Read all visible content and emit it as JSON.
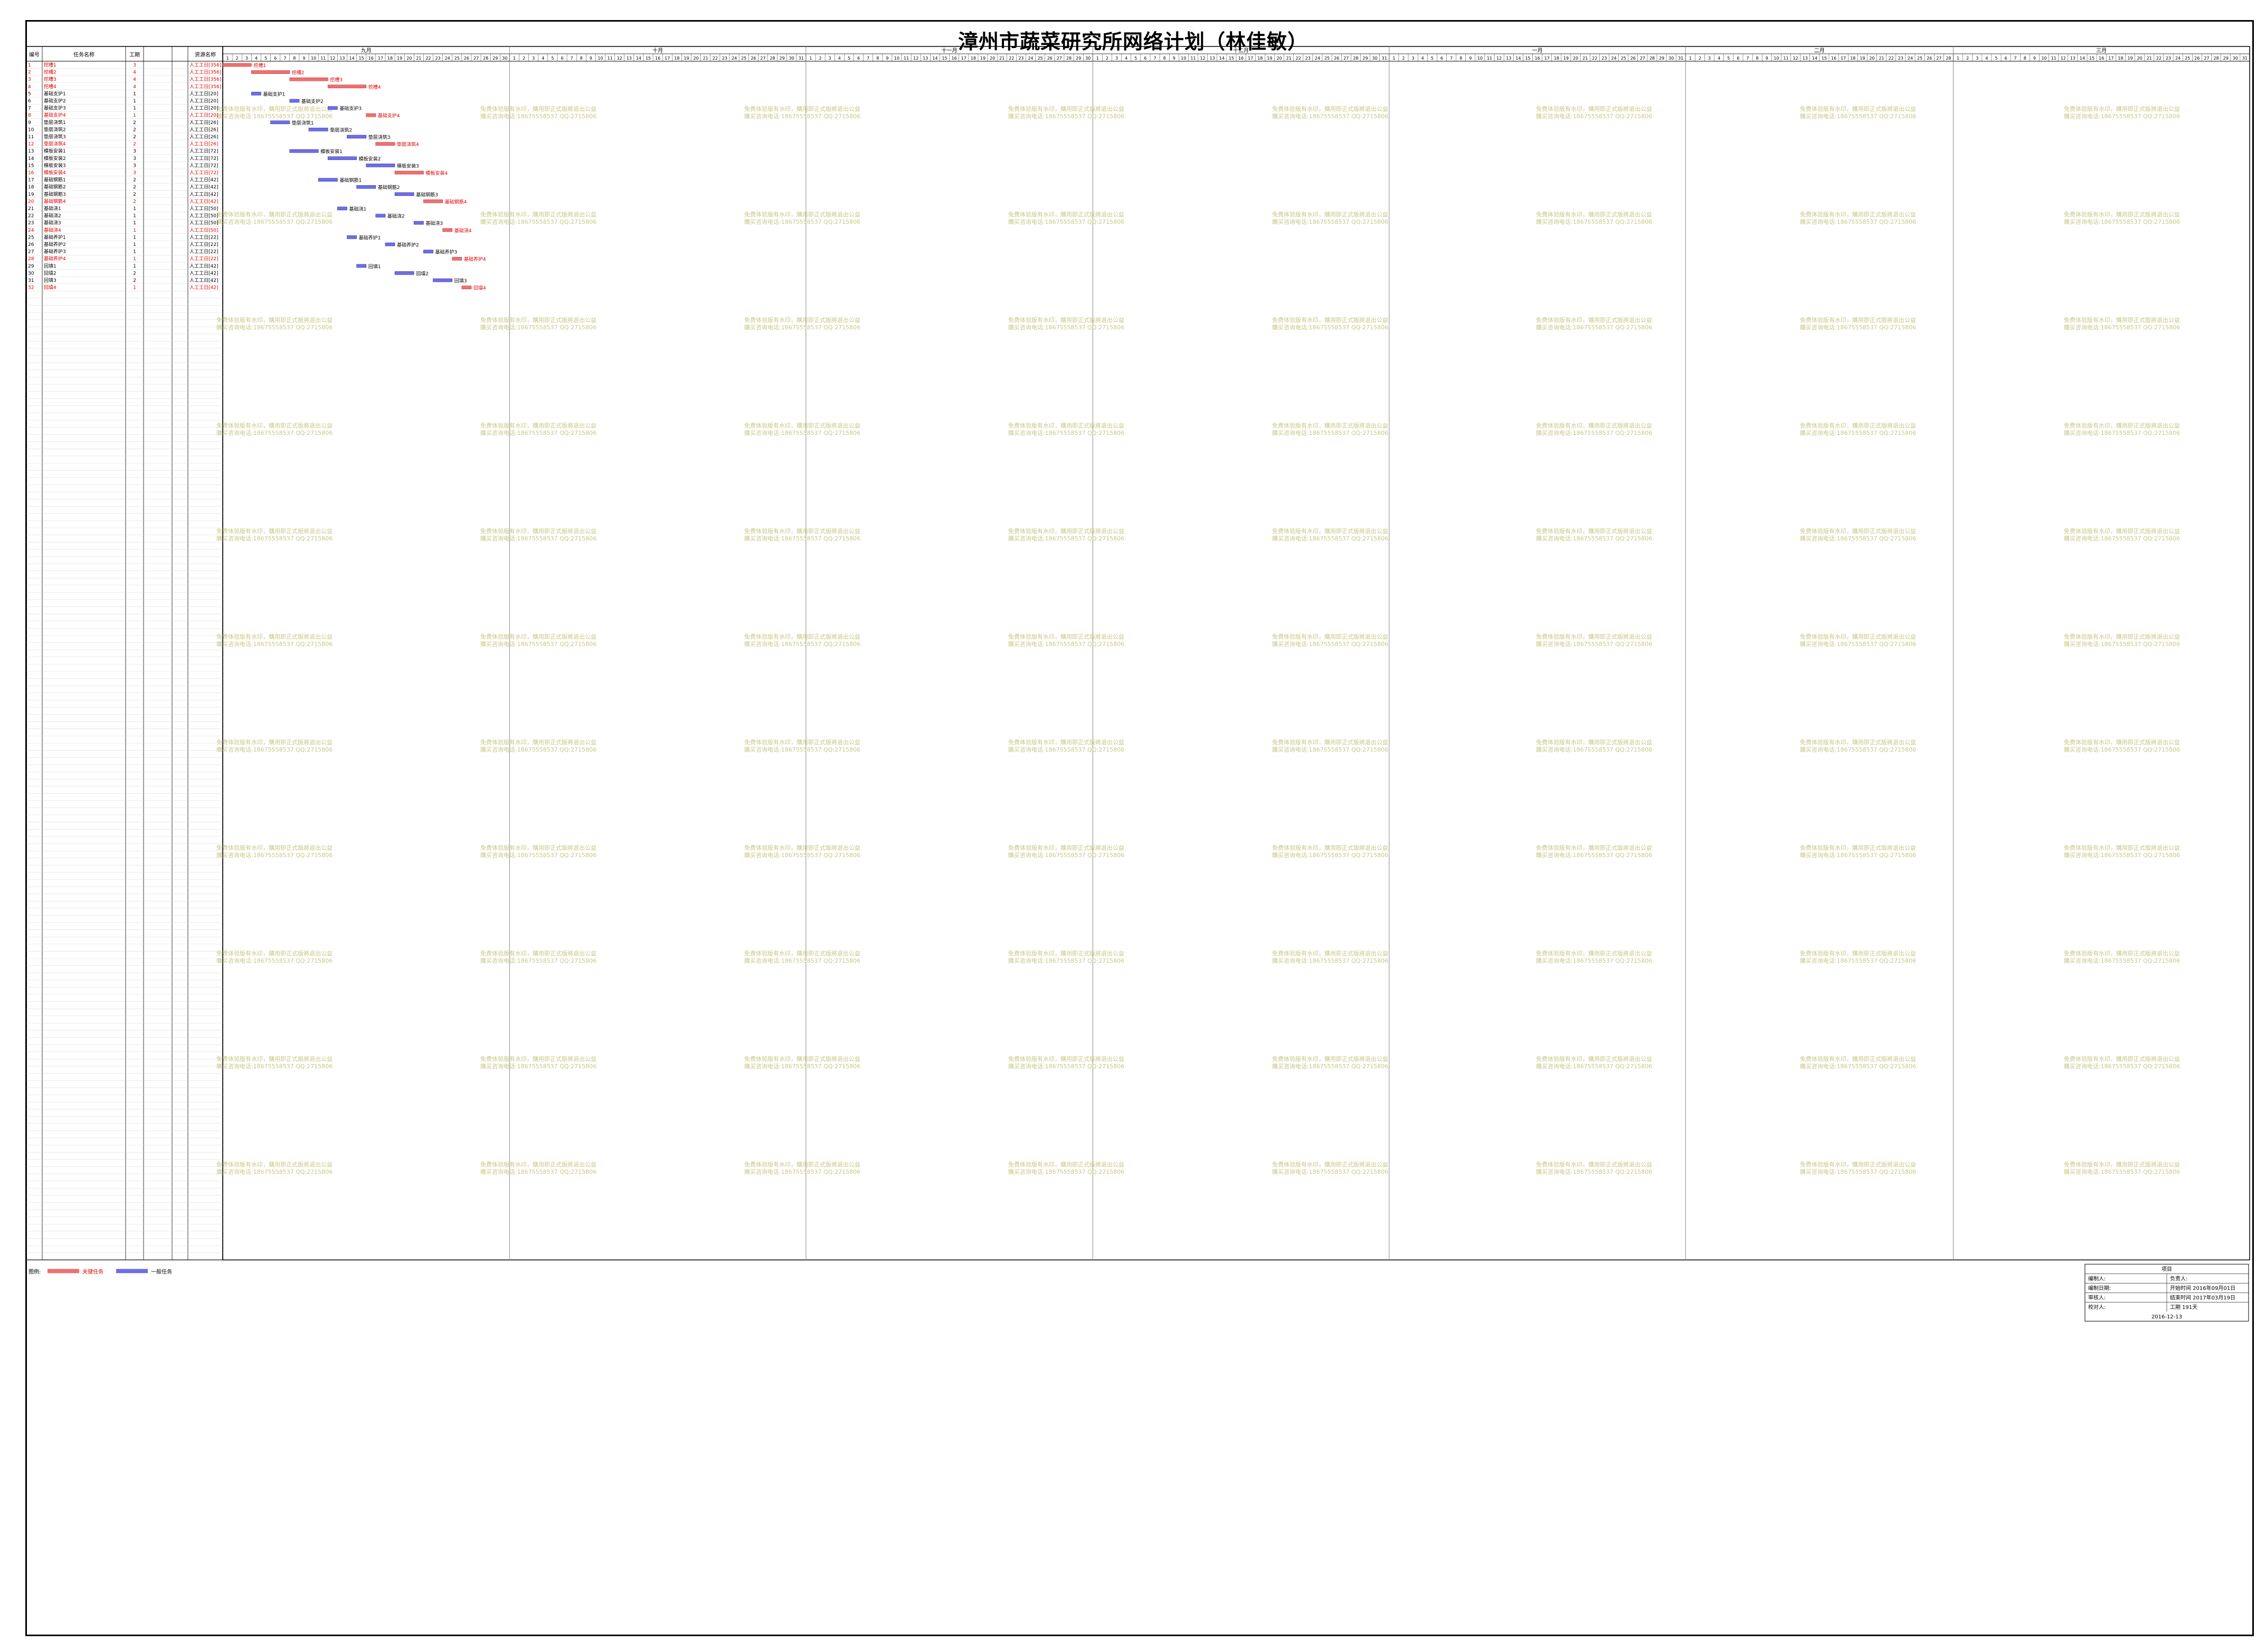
{
  "title": "漳州市蔬菜研究所网络计划（林佳敏）",
  "table_headers": {
    "id": "编号",
    "name": "任务名称",
    "duration": "工期",
    "resource": "资源名称"
  },
  "months": [
    "九月",
    "十月",
    "十一月",
    "十二月",
    "一月",
    "二月",
    "三月"
  ],
  "month_days": [
    30,
    31,
    30,
    31,
    31,
    28,
    31
  ],
  "watermark_lines": [
    "免费体验版有水印，購用即正式版將退出公益",
    "購买咨询电话:18675558537 QQ:2715806"
  ],
  "legend": {
    "label": "图例:",
    "key": "关键任务",
    "normal": "一般任务"
  },
  "info_box": {
    "header": "项目",
    "rows": [
      [
        "编制人:",
        "负责人:"
      ],
      [
        "编制日期:",
        "开始时间 2016年09月01日"
      ],
      [
        "审核人:",
        "结束时间 2017年03月19日"
      ],
      [
        "校对人:",
        "工期     191天"
      ]
    ],
    "date": "2016-12-13"
  },
  "colors": {
    "critical": "#f07070",
    "normal": "#6e6ee8",
    "critical_text": "#e00000",
    "watermark": "#c8c888",
    "line_normal": "#6060e0",
    "line_critical": "#f06060"
  },
  "chart_data": {
    "type": "gantt",
    "title": "漳州市蔬菜研究所网络计划（林佳敏）",
    "project_start": "2016-09-01",
    "project_end": "2017-03-19",
    "total_duration_days": 191,
    "tasks": [
      {
        "id": 1,
        "name": "挖槽1",
        "start": "2016-09-01",
        "dur": 3,
        "critical": true,
        "res": "人工工日[356]"
      },
      {
        "id": 2,
        "name": "挖槽2",
        "start": "2016-09-04",
        "dur": 4,
        "critical": true,
        "res": "人工工日[356]"
      },
      {
        "id": 3,
        "name": "挖槽3",
        "start": "2016-09-08",
        "dur": 4,
        "critical": true,
        "res": "人工工日[356]"
      },
      {
        "id": 4,
        "name": "挖槽4",
        "start": "2016-09-12",
        "dur": 4,
        "critical": true,
        "res": "人工工日[356]"
      },
      {
        "id": 5,
        "name": "基础支护1",
        "start": "2016-09-04",
        "dur": 1,
        "critical": false,
        "res": "人工工日[20]"
      },
      {
        "id": 6,
        "name": "基础支护2",
        "start": "2016-09-08",
        "dur": 1,
        "critical": false,
        "res": "人工工日[20]"
      },
      {
        "id": 7,
        "name": "基础支护3",
        "start": "2016-09-12",
        "dur": 1,
        "critical": false,
        "res": "人工工日[20]"
      },
      {
        "id": 8,
        "name": "基础支护4",
        "start": "2016-09-16",
        "dur": 1,
        "critical": true,
        "res": "人工工日[20]"
      },
      {
        "id": 9,
        "name": "垫层浇筑1",
        "start": "2016-09-06",
        "dur": 2,
        "critical": false,
        "res": "人工工日[26]"
      },
      {
        "id": 10,
        "name": "垫层浇筑2",
        "start": "2016-09-10",
        "dur": 2,
        "critical": false,
        "res": "人工工日[26]"
      },
      {
        "id": 11,
        "name": "垫层浇筑3",
        "start": "2016-09-14",
        "dur": 2,
        "critical": false,
        "res": "人工工日[26]"
      },
      {
        "id": 12,
        "name": "垫层浇筑4",
        "start": "2016-09-17",
        "dur": 2,
        "critical": true,
        "res": "人工工日[26]"
      },
      {
        "id": 13,
        "name": "模板安装1",
        "start": "2016-09-08",
        "dur": 3,
        "critical": false,
        "res": "人工工日[72]"
      },
      {
        "id": 14,
        "name": "模板安装2",
        "start": "2016-09-12",
        "dur": 3,
        "critical": false,
        "res": "人工工日[72]"
      },
      {
        "id": 15,
        "name": "模板安装3",
        "start": "2016-09-16",
        "dur": 3,
        "critical": false,
        "res": "人工工日[72]"
      },
      {
        "id": 16,
        "name": "模板安装4",
        "start": "2016-09-19",
        "dur": 3,
        "critical": true,
        "res": "人工工日[72]"
      },
      {
        "id": 17,
        "name": "基础钢筋1",
        "start": "2016-09-11",
        "dur": 2,
        "critical": false,
        "res": "人工工日[42]"
      },
      {
        "id": 18,
        "name": "基础钢筋2",
        "start": "2016-09-15",
        "dur": 2,
        "critical": false,
        "res": "人工工日[42]"
      },
      {
        "id": 19,
        "name": "基础钢筋3",
        "start": "2016-09-19",
        "dur": 2,
        "critical": false,
        "res": "人工工日[42]"
      },
      {
        "id": 20,
        "name": "基础钢筋4",
        "start": "2016-09-22",
        "dur": 2,
        "critical": true,
        "res": "人工工日[42]"
      },
      {
        "id": 21,
        "name": "基础浇1",
        "start": "2016-09-13",
        "dur": 1,
        "critical": false,
        "res": "人工工日[50]"
      },
      {
        "id": 22,
        "name": "基础浇2",
        "start": "2016-09-17",
        "dur": 1,
        "critical": false,
        "res": "人工工日[50]"
      },
      {
        "id": 23,
        "name": "基础浇3",
        "start": "2016-09-21",
        "dur": 1,
        "critical": false,
        "res": "人工工日[50]"
      },
      {
        "id": 24,
        "name": "基础浇4",
        "start": "2016-09-24",
        "dur": 1,
        "critical": true,
        "res": "人工工日[50]"
      },
      {
        "id": 25,
        "name": "基础养护1",
        "start": "2016-09-14",
        "dur": 1,
        "critical": false,
        "res": "人工工日[22]"
      },
      {
        "id": 26,
        "name": "基础养护2",
        "start": "2016-09-18",
        "dur": 1,
        "critical": false,
        "res": "人工工日[22]"
      },
      {
        "id": 27,
        "name": "基础养护3",
        "start": "2016-09-22",
        "dur": 1,
        "critical": false,
        "res": "人工工日[22]"
      },
      {
        "id": 28,
        "name": "基础养护4",
        "start": "2016-09-25",
        "dur": 1,
        "critical": true,
        "res": "人工工日[22]"
      },
      {
        "id": 29,
        "name": "回填1",
        "start": "2016-09-15",
        "dur": 1,
        "critical": false,
        "res": "人工工日[42]"
      },
      {
        "id": 30,
        "name": "回填2",
        "start": "2016-09-19",
        "dur": 2,
        "critical": false,
        "res": "人工工日[42]"
      },
      {
        "id": 31,
        "name": "回填3",
        "start": "2016-09-23",
        "dur": 2,
        "critical": false,
        "res": "人工工日[42]"
      },
      {
        "id": 32,
        "name": "回填4",
        "start": "2016-09-26",
        "dur": 1,
        "critical": true,
        "res": "人工工日[42]"
      }
    ]
  }
}
